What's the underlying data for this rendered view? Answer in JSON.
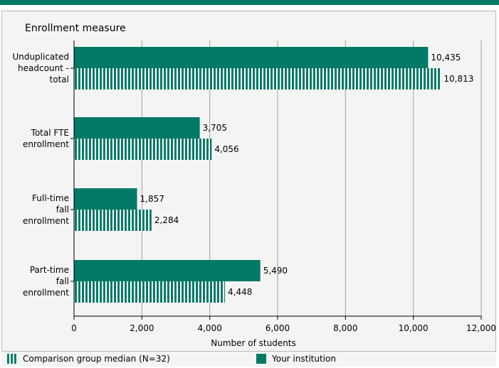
{
  "chart_data": {
    "type": "bar",
    "orientation": "horizontal",
    "title": "Enrollment measure",
    "xlabel": "Number of students",
    "xlim": [
      0,
      12000
    ],
    "xticks": [
      0,
      2000,
      4000,
      6000,
      8000,
      10000,
      12000
    ],
    "xtick_labels": [
      "0",
      "2,000",
      "4,000",
      "6,000",
      "8,000",
      "10,000",
      "12,000"
    ],
    "grid": "vertical",
    "legend_position": "bottom",
    "categories": [
      [
        "Unduplicated",
        "headcount -",
        "total"
      ],
      [
        "Total FTE",
        "enrollment"
      ],
      [
        "Full-time",
        "fall",
        "enrollment"
      ],
      [
        "Part-time",
        "fall",
        "enrollment"
      ]
    ],
    "series": [
      {
        "name": "Your institution",
        "style": "solid",
        "values": [
          10435,
          3705,
          1857,
          5490
        ],
        "labels": [
          "10,435",
          "3,705",
          "1,857",
          "5,490"
        ]
      },
      {
        "name": "Comparison group median (N=32)",
        "style": "striped",
        "values": [
          10813,
          4056,
          2284,
          4448
        ],
        "labels": [
          "10,813",
          "4,056",
          "2,284",
          "4,448"
        ]
      }
    ]
  },
  "colors": {
    "bar": "#007a66",
    "stripe": "#ffffff",
    "grid": "#a0a0a0",
    "band": "#007a66"
  },
  "legend": {
    "items": [
      {
        "name": "Comparison group median (N=32)",
        "style": "striped"
      },
      {
        "name": "Your institution",
        "style": "solid"
      }
    ]
  }
}
